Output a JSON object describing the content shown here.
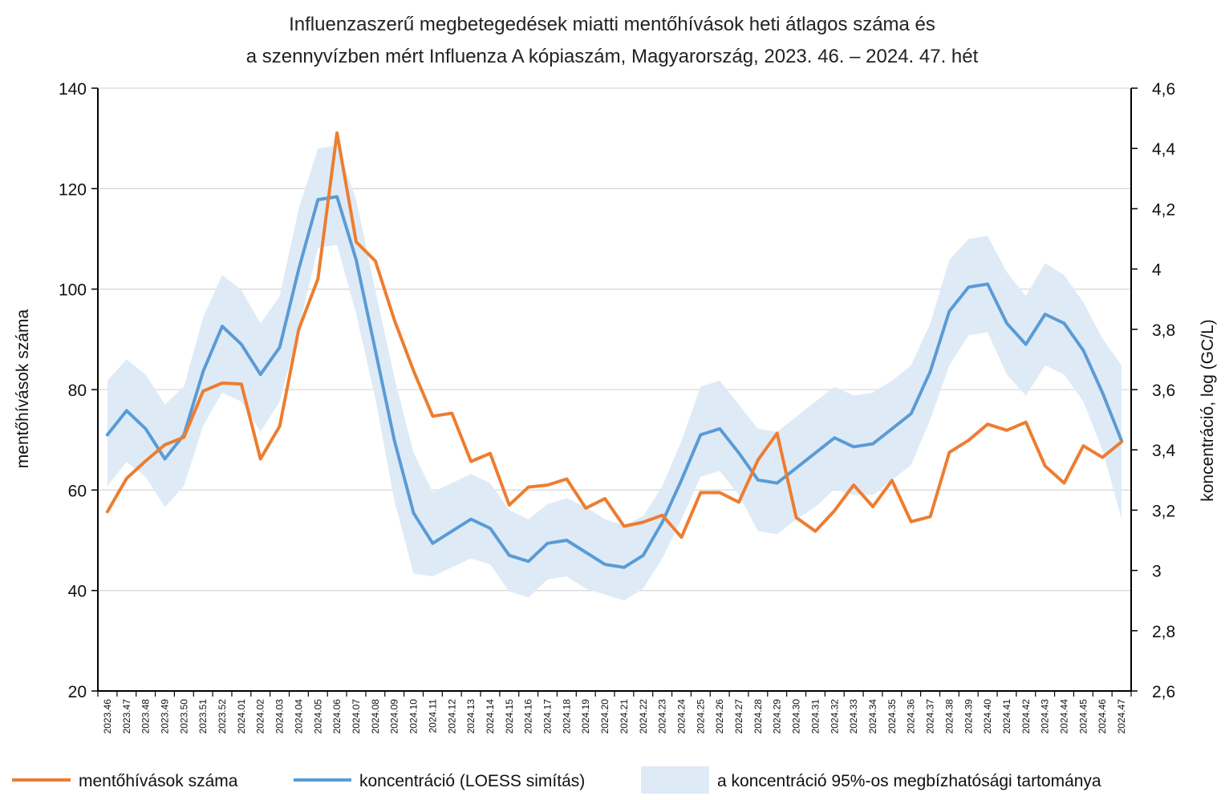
{
  "chart_data": {
    "type": "line",
    "title_line1": "Influenzaszerű megbetegedések miatti mentőhívások heti átlagos száma és",
    "title_line2": "a szennyvízben mért Influenza A kópiaszám, Magyarország, 2023. 46. – 2024. 47. hét",
    "ylabel_left": "mentőhívások száma",
    "ylabel_right": "koncentráció, log (GC/L)",
    "ylim_left": [
      20,
      140
    ],
    "yticks_left": [
      "20",
      "40",
      "60",
      "80",
      "100",
      "120",
      "140"
    ],
    "ylim_right": [
      2.6,
      4.6
    ],
    "yticks_right": [
      "2,6",
      "2,8",
      "3",
      "3,2",
      "3,4",
      "3,6",
      "3,8",
      "4",
      "4,2",
      "4,4",
      "4,6"
    ],
    "grid": true,
    "legend_position": "bottom",
    "categories": [
      "2023.46",
      "2023.47",
      "2023.48",
      "2023.49",
      "2023.50",
      "2023.51",
      "2023.52",
      "2024.01",
      "2024.02",
      "2024.03",
      "2024.04",
      "2024.05",
      "2024.06",
      "2024.07",
      "2024.08",
      "2024.09",
      "2024.10",
      "2024.11",
      "2024.12",
      "2024.13",
      "2024.14",
      "2024.15",
      "2024.16",
      "2024.17",
      "2024.18",
      "2024.19",
      "2024.20",
      "2024.21",
      "2024.22",
      "2024.23",
      "2024.24",
      "2024.25",
      "2024.26",
      "2024.27",
      "2024.28",
      "2024.29",
      "2024.30",
      "2024.31",
      "2024.32",
      "2024.33",
      "2024.34",
      "2024.35",
      "2024.36",
      "2024.37",
      "2024.38",
      "2024.39",
      "2024.40",
      "2024.41",
      "2024.42",
      "2024.43",
      "2024.44",
      "2024.45",
      "2024.46",
      "2024.47"
    ],
    "series": [
      {
        "name": "mentőhívások száma",
        "axis": "left",
        "color": "#ED7D31",
        "values": [
          55.7,
          62.3,
          65.8,
          69.0,
          70.5,
          79.7,
          81.3,
          81.1,
          66.2,
          72.7,
          92.0,
          102.0,
          131.1,
          109.4,
          105.6,
          93.8,
          83.7,
          74.7,
          75.3,
          65.7,
          67.3,
          57.0,
          60.6,
          61.0,
          62.2,
          56.4,
          58.3,
          52.8,
          53.6,
          55.0,
          50.6,
          59.5,
          59.5,
          57.6,
          66.0,
          71.3,
          54.5,
          51.8,
          55.9,
          61.0,
          56.7,
          61.9,
          53.7,
          54.7,
          67.5,
          69.9,
          73.1,
          71.9,
          73.5,
          64.8,
          61.4,
          68.8,
          66.5,
          69.6
        ]
      },
      {
        "name": "koncentráció (LOESS simítás)",
        "axis": "right",
        "color": "#5B9BD5",
        "values": [
          3.45,
          3.53,
          3.47,
          3.37,
          3.45,
          3.66,
          3.81,
          3.75,
          3.65,
          3.74,
          4.0,
          4.23,
          4.24,
          4.03,
          3.73,
          3.43,
          3.19,
          3.09,
          3.13,
          3.17,
          3.14,
          3.05,
          3.03,
          3.09,
          3.1,
          3.06,
          3.02,
          3.01,
          3.05,
          3.16,
          3.3,
          3.45,
          3.47,
          3.39,
          3.3,
          3.29,
          3.34,
          3.39,
          3.44,
          3.41,
          3.42,
          3.47,
          3.52,
          3.66,
          3.86,
          3.94,
          3.95,
          3.82,
          3.75,
          3.85,
          3.82,
          3.73,
          3.59,
          3.43
        ]
      },
      {
        "name": "a koncentráció 95%-os megbízhatósági tartománya",
        "axis": "right",
        "color": "#DEEBF7",
        "lower": [
          3.28,
          3.36,
          3.31,
          3.21,
          3.28,
          3.48,
          3.59,
          3.56,
          3.46,
          3.56,
          3.8,
          4.07,
          4.08,
          3.85,
          3.57,
          3.23,
          2.99,
          2.98,
          3.01,
          3.04,
          3.02,
          2.93,
          2.91,
          2.97,
          2.98,
          2.94,
          2.92,
          2.9,
          2.94,
          3.04,
          3.17,
          3.31,
          3.33,
          3.25,
          3.13,
          3.12,
          3.17,
          3.21,
          3.27,
          3.25,
          3.25,
          3.3,
          3.35,
          3.5,
          3.68,
          3.78,
          3.79,
          3.65,
          3.58,
          3.68,
          3.65,
          3.56,
          3.4,
          3.17
        ],
        "upper": [
          3.63,
          3.7,
          3.65,
          3.55,
          3.61,
          3.84,
          3.98,
          3.93,
          3.82,
          3.91,
          4.2,
          4.4,
          4.41,
          4.23,
          3.93,
          3.64,
          3.39,
          3.26,
          3.29,
          3.32,
          3.29,
          3.2,
          3.17,
          3.22,
          3.24,
          3.21,
          3.17,
          3.15,
          3.18,
          3.28,
          3.43,
          3.61,
          3.63,
          3.55,
          3.47,
          3.46,
          3.51,
          3.56,
          3.61,
          3.58,
          3.59,
          3.63,
          3.68,
          3.82,
          4.03,
          4.1,
          4.11,
          3.99,
          3.91,
          4.02,
          3.98,
          3.89,
          3.77,
          3.68
        ]
      }
    ],
    "legend": [
      {
        "label": "mentőhívások száma",
        "kind": "line",
        "color": "#ED7D31"
      },
      {
        "label": "koncentráció (LOESS simítás)",
        "kind": "line",
        "color": "#5B9BD5"
      },
      {
        "label": "a koncentráció 95%-os megbízhatósági tartománya",
        "kind": "area",
        "color": "#DEEBF7"
      }
    ]
  }
}
